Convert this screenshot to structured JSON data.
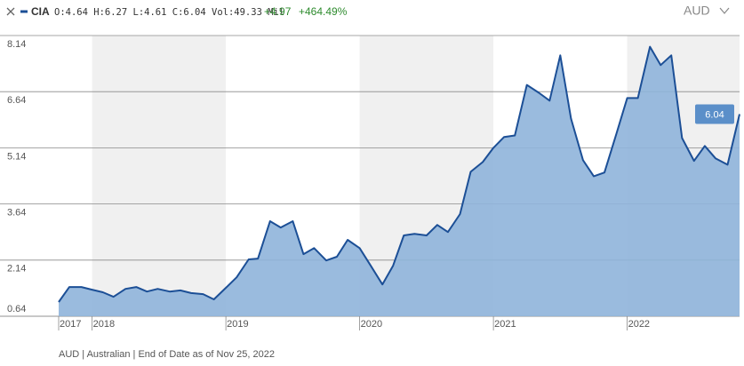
{
  "chart_data": {
    "type": "area",
    "ticker": "CIA",
    "stats": "O:4.64 H:6.27 L:4.61 C:6.04 Vol:49.33 Mil",
    "change": "+4.97",
    "change_percent": "+464.49%",
    "currency": "AUD",
    "footnote": "AUD | Australian | End of Date as of Nov 25, 2022",
    "line_color": "#1c4f96",
    "fill_color": "#8fb4da",
    "band_color": "#f0f0f0",
    "label_color": "#5b8fc9",
    "grid": true,
    "x": [
      2017.75,
      2017.83,
      2017.92,
      2018.0,
      2018.08,
      2018.16,
      2018.25,
      2018.33,
      2018.41,
      2018.49,
      2018.58,
      2018.66,
      2018.74,
      2018.83,
      2018.91,
      2019.0,
      2019.08,
      2019.17,
      2019.24,
      2019.33,
      2019.41,
      2019.5,
      2019.58,
      2019.66,
      2019.75,
      2019.83,
      2019.91,
      2020.0,
      2020.08,
      2020.17,
      2020.25,
      2020.33,
      2020.41,
      2020.5,
      2020.58,
      2020.66,
      2020.75,
      2020.83,
      2020.92,
      2021.0,
      2021.08,
      2021.16,
      2021.25,
      2021.34,
      2021.42,
      2021.5,
      2021.58,
      2021.67,
      2021.75,
      2021.83,
      2021.92,
      2022.0,
      2022.08,
      2022.17,
      2022.25,
      2022.33,
      2022.41,
      2022.5,
      2022.58,
      2022.66,
      2022.75,
      2022.84
    ],
    "values": [
      1.02,
      1.42,
      1.42,
      1.35,
      1.28,
      1.16,
      1.37,
      1.42,
      1.3,
      1.37,
      1.3,
      1.33,
      1.26,
      1.23,
      1.09,
      1.4,
      1.68,
      2.16,
      2.18,
      3.18,
      3.01,
      3.18,
      2.3,
      2.46,
      2.13,
      2.23,
      2.68,
      2.46,
      2.01,
      1.49,
      1.99,
      2.8,
      2.84,
      2.8,
      3.08,
      2.89,
      3.37,
      4.5,
      4.76,
      5.14,
      5.43,
      5.47,
      6.82,
      6.61,
      6.4,
      7.61,
      5.92,
      4.81,
      4.38,
      4.48,
      5.52,
      6.47,
      6.47,
      7.84,
      7.35,
      7.61,
      5.4,
      4.79,
      5.19,
      4.86,
      4.69,
      6.04
    ],
    "xlim": [
      2017.75,
      2022.84
    ],
    "xticks": [
      {
        "value": 2017.75,
        "label": "2017"
      },
      2018,
      2019,
      2020,
      2021,
      2022
    ],
    "ylim": [
      0.64,
      8.14
    ],
    "yticks": [
      0.64,
      2.14,
      3.64,
      5.14,
      6.64,
      8.14
    ]
  }
}
